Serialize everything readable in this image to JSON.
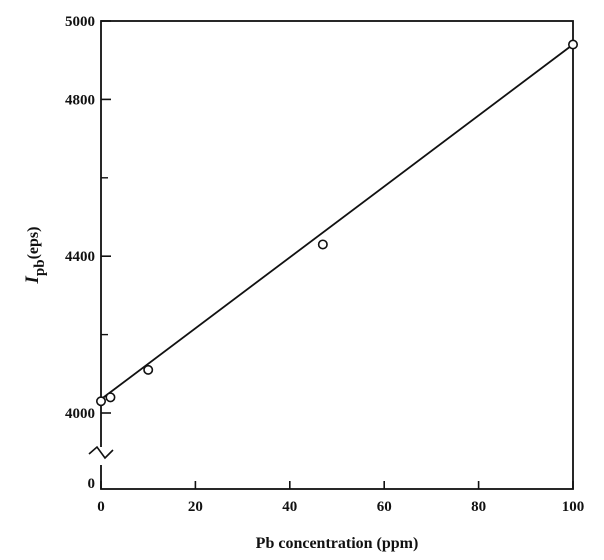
{
  "chart_data": {
    "type": "scatter",
    "title": "",
    "xlabel": "Pb concentration (ppm)",
    "ylabel": {
      "symbol": "I",
      "subscript": "pb",
      "unit": "(eps)"
    },
    "xlim": [
      0,
      100
    ],
    "ylim": [
      4000,
      5000
    ],
    "broken_y_axis": true,
    "y_break_label": "0",
    "x_ticks": [
      0,
      20,
      40,
      60,
      80,
      100
    ],
    "y_major_ticks": [
      4000,
      4400,
      4800,
      5000
    ],
    "y_minor_ticks": [
      4200,
      4600
    ],
    "grid": false,
    "series": [
      {
        "x": [
          0,
          2,
          10,
          47,
          100
        ],
        "y": [
          4030,
          4040,
          4110,
          4430,
          4940
        ],
        "marker": "open-circle"
      }
    ],
    "fit_line": {
      "x": [
        0,
        100
      ],
      "y": [
        4035,
        4940
      ]
    },
    "colors": {
      "ink": "#111111",
      "background": "#ffffff"
    }
  }
}
